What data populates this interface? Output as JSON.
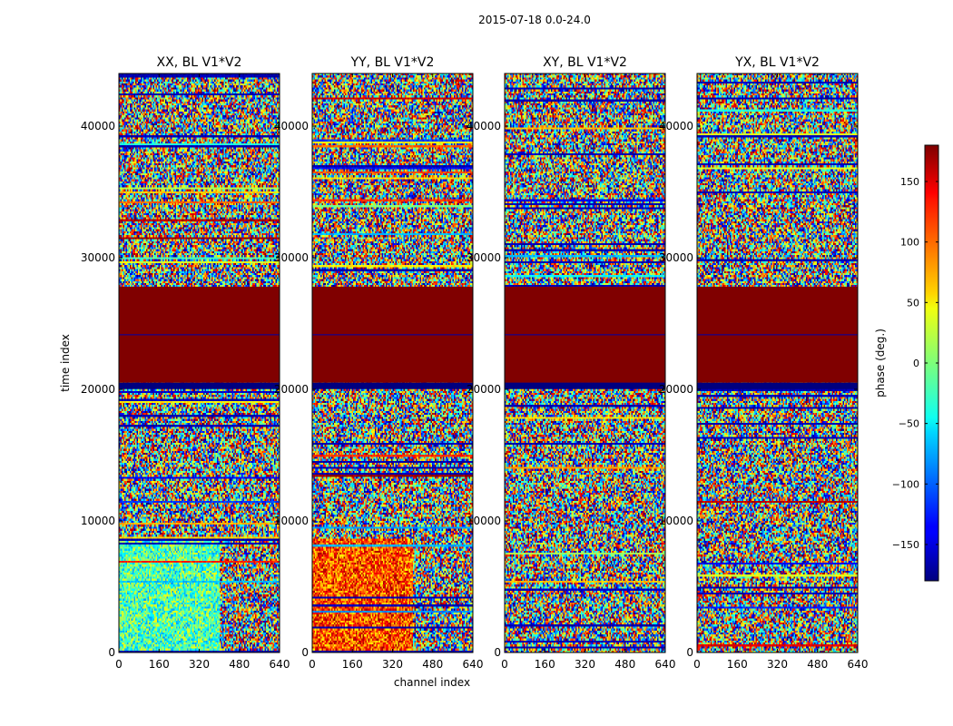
{
  "figure": {
    "suptitle": "2015-07-18 0.0-24.0",
    "ylabel": "time index",
    "xlabel": "channel index"
  },
  "chart_data": {
    "type": "heatmap",
    "colormap": "jet",
    "x_range": [
      0,
      640
    ],
    "y_range": [
      0,
      44000
    ],
    "x_ticks": [
      "0",
      "160",
      "320",
      "480",
      "640"
    ],
    "y_ticks": [
      "0",
      "10000",
      "20000",
      "30000",
      "40000"
    ],
    "saturated_time_range": [
      20500,
      27800
    ],
    "saturated_phase_deg": 180,
    "panels": [
      {
        "title": "XX, BL V1*V2"
      },
      {
        "title": "YY, BL V1*V2"
      },
      {
        "title": "XY, BL V1*V2"
      },
      {
        "title": "YX, BL V1*V2"
      }
    ],
    "colorbar": {
      "label": "phase (deg.)",
      "range": [
        -180,
        180
      ],
      "ticks": [
        "150",
        "100",
        "50",
        "0",
        "−50",
        "−100",
        "−150"
      ]
    }
  }
}
